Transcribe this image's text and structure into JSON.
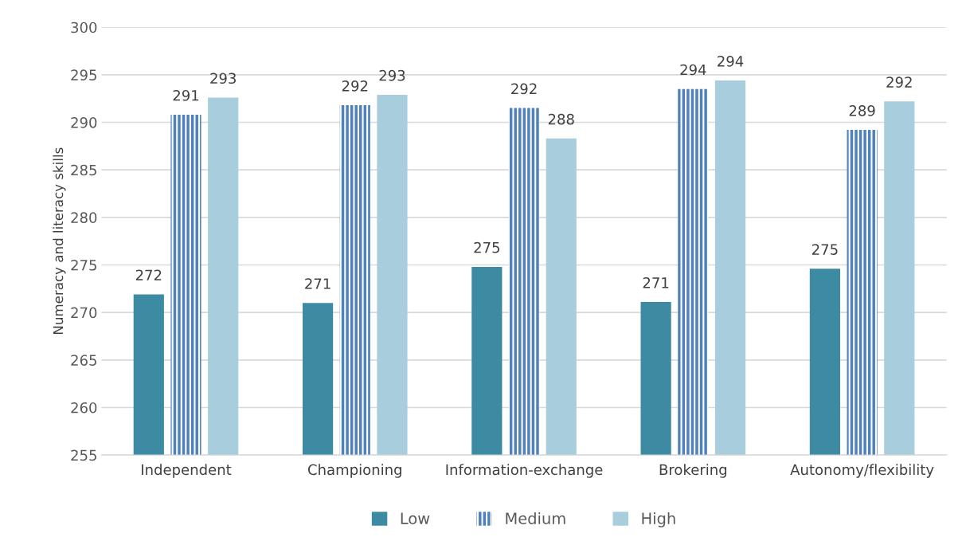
{
  "chart_data": {
    "type": "bar",
    "ylabel": "Numeracy and literacy skills",
    "categories": [
      "Independent",
      "Championing",
      "Information-exchange",
      "Brokering",
      "Autonomy/flexibility"
    ],
    "series": [
      {
        "name": "Low",
        "color": "#3d8ba3",
        "values": [
          271.9,
          271.0,
          274.8,
          271.1,
          274.6
        ],
        "value_labels": [
          "272",
          "271",
          "275",
          "271",
          "275"
        ]
      },
      {
        "name": "Medium",
        "color": "#4f81bd",
        "values": [
          290.8,
          291.8,
          291.5,
          293.5,
          289.2
        ],
        "value_labels": [
          "291",
          "292",
          "292",
          "294",
          "289"
        ]
      },
      {
        "name": "High",
        "color": "#a8cddc",
        "values": [
          292.6,
          292.9,
          288.3,
          294.4,
          292.2
        ],
        "value_labels": [
          "293",
          "293",
          "288",
          "294",
          "292"
        ]
      }
    ],
    "ylim": [
      255,
      300
    ],
    "yticks": [
      255,
      260,
      265,
      270,
      275,
      280,
      285,
      290,
      295,
      300
    ],
    "grid": "y",
    "legend": "bottom"
  }
}
